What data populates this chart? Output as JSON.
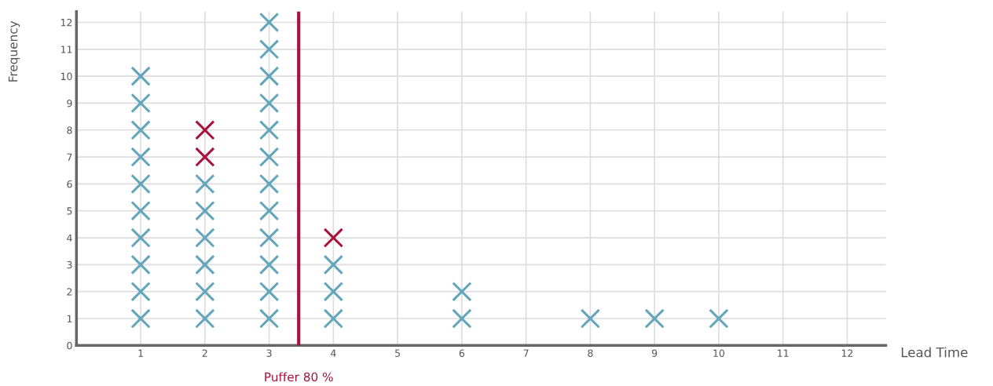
{
  "chart_data": {
    "type": "scatter",
    "xlabel": "Lead Time",
    "ylabel": "Frequency",
    "marker": "cross",
    "grid": true,
    "xlim": [
      0,
      12.6
    ],
    "xticks": [
      1,
      2,
      3,
      4,
      5,
      6,
      7,
      8,
      9,
      10,
      11,
      12
    ],
    "ylim": [
      0,
      12.4
    ],
    "yticks": [
      0,
      1,
      2,
      3,
      4,
      5,
      6,
      7,
      8,
      9,
      10,
      11,
      12
    ],
    "series": [
      {
        "color": "#63a6bb",
        "x": [
          1,
          1,
          1,
          1,
          1,
          1,
          1,
          1,
          1,
          1,
          2,
          2,
          2,
          2,
          2,
          2,
          3,
          3,
          3,
          3,
          3,
          3,
          3,
          3,
          3,
          3,
          3,
          3,
          4,
          4,
          4,
          6,
          6,
          8,
          9,
          10
        ],
        "values": [
          1,
          2,
          3,
          4,
          5,
          6,
          7,
          8,
          9,
          10,
          1,
          2,
          3,
          4,
          5,
          6,
          1,
          2,
          3,
          4,
          5,
          6,
          7,
          8,
          9,
          10,
          11,
          12,
          1,
          2,
          3,
          1,
          2,
          1,
          1,
          1
        ]
      },
      {
        "color": "#a8123e",
        "x": [
          2,
          2,
          4
        ],
        "values": [
          7,
          8,
          4
        ]
      }
    ],
    "ref_lines": [
      {
        "axis": "x",
        "value": 3.46,
        "label": "Puffer 80 %",
        "color": "#a8123e",
        "line_style": "solid"
      }
    ]
  }
}
